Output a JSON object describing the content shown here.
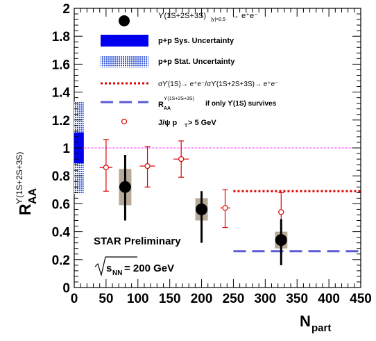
{
  "chart_data": {
    "type": "scatter",
    "xlabel_main": "N",
    "xlabel_sub": "part",
    "ylabel_main": "R",
    "ylabel_sub": "AA",
    "ylabel_sup": "ϒ(1S+2S+3S)",
    "xlim": [
      0,
      450
    ],
    "ylim": [
      0,
      2
    ],
    "x_ticks": [
      "0",
      "50",
      "100",
      "150",
      "200",
      "250",
      "300",
      "350",
      "400",
      "450"
    ],
    "y_ticks": [
      "0",
      "0.2",
      "0.4",
      "0.6",
      "0.8",
      "1",
      "1.2",
      "1.4",
      "1.6",
      "1.8",
      "2"
    ],
    "reference_line_y": 1,
    "upsilon": {
      "x": [
        80,
        200,
        325
      ],
      "y": [
        0.72,
        0.56,
        0.34
      ],
      "err_low": [
        0.24,
        0.24,
        0.18
      ],
      "err_high": [
        0.23,
        0.13,
        0.15
      ],
      "sys": [
        0.13,
        0.08,
        0.06
      ]
    },
    "jpsi": {
      "x": [
        50,
        115,
        168,
        237,
        325
      ],
      "y": [
        0.86,
        0.87,
        0.92,
        0.57,
        0.54
      ],
      "xerr": [
        10,
        12,
        12,
        8,
        0
      ],
      "err_low": [
        0.17,
        0.15,
        0.13,
        0.14,
        0.16
      ],
      "err_high": [
        0.2,
        0.14,
        0.13,
        0.13,
        0.14
      ]
    },
    "pp_sys_uncertainty": [
      0.89,
      1.11
    ],
    "pp_stat_uncertainty": [
      0.67,
      1.33
    ],
    "ratio_line": {
      "x": [
        250,
        450
      ],
      "y": 0.69
    },
    "survival_line": {
      "x": [
        250,
        450
      ],
      "y": 0.26
    }
  },
  "legend": {
    "upsilon_label": "ϒ(1S+2S+3S)",
    "upsilon_sub": "|y|<0.5",
    "upsilon_tail": "→ e⁺e⁻",
    "pp_sys": "p+p Sys. Uncertainty",
    "pp_stat": "p+p Stat. Uncertainty",
    "ratio": "σϒ(1S)→ e⁺e⁻/σϒ(1S+2S+3S)→ e⁺e⁻",
    "raa_main": "R",
    "raa_sub": "AA",
    "raa_sup": "ϒ(1S+2S+3S)",
    "raa_tail": "if only ϒ(1S) survives",
    "jpsi_main": "J/ψ  p",
    "jpsi_sub": "T",
    "jpsi_tail": " > 5 GeV"
  },
  "annotations": {
    "preliminary": "STAR Preliminary",
    "energy_s": "s",
    "energy_sub": "NN",
    "energy_tail": " = 200 GeV"
  },
  "colors": {
    "upsilon": "#000000",
    "jpsi": "#dd0000",
    "sys_band": "#0000ee",
    "stat_band": "#3a5bd8",
    "reference": "#ff00ff",
    "ratio_line": "#dd0000",
    "survival_line": "#5a5ad6",
    "sys_box": "#b8aa98"
  }
}
